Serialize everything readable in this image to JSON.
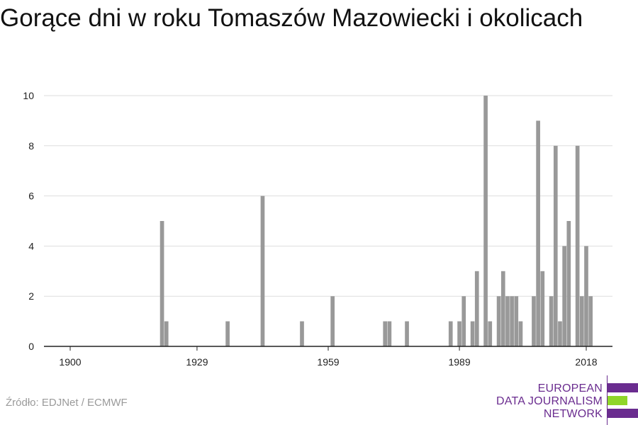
{
  "title": "Gorące dni w roku Tomaszów Mazowiecki i okolicach",
  "source": "Źródło: EDJNet / ECMWF",
  "logo": {
    "lines": [
      "EUROPEAN",
      "DATA JOURNALISM",
      "NETWORK"
    ],
    "colors": {
      "purple": "#6a2c8f",
      "green": "#8fd629"
    }
  },
  "chart_data": {
    "type": "bar",
    "title": "Gorące dni w roku Tomaszów Mazowiecki i okolicach",
    "xlabel": "",
    "ylabel": "",
    "x_ticks": [
      1900,
      1929,
      1959,
      1989,
      2018
    ],
    "y_ticks": [
      0,
      2,
      4,
      6,
      8,
      10
    ],
    "xlim": [
      1894,
      2024
    ],
    "ylim": [
      0,
      10
    ],
    "grid": "horizontal",
    "bar_color": "#999999",
    "points": [
      {
        "year": 1921,
        "value": 5
      },
      {
        "year": 1922,
        "value": 1
      },
      {
        "year": 1936,
        "value": 1
      },
      {
        "year": 1944,
        "value": 6
      },
      {
        "year": 1953,
        "value": 1
      },
      {
        "year": 1960,
        "value": 2
      },
      {
        "year": 1972,
        "value": 1
      },
      {
        "year": 1973,
        "value": 1
      },
      {
        "year": 1977,
        "value": 1
      },
      {
        "year": 1987,
        "value": 1
      },
      {
        "year": 1989,
        "value": 1
      },
      {
        "year": 1990,
        "value": 2
      },
      {
        "year": 1992,
        "value": 1
      },
      {
        "year": 1993,
        "value": 3
      },
      {
        "year": 1995,
        "value": 10
      },
      {
        "year": 1996,
        "value": 1
      },
      {
        "year": 1998,
        "value": 2
      },
      {
        "year": 1999,
        "value": 3
      },
      {
        "year": 2000,
        "value": 2
      },
      {
        "year": 2001,
        "value": 2
      },
      {
        "year": 2002,
        "value": 2
      },
      {
        "year": 2003,
        "value": 1
      },
      {
        "year": 2006,
        "value": 2
      },
      {
        "year": 2007,
        "value": 9
      },
      {
        "year": 2008,
        "value": 3
      },
      {
        "year": 2010,
        "value": 2
      },
      {
        "year": 2011,
        "value": 8
      },
      {
        "year": 2012,
        "value": 1
      },
      {
        "year": 2013,
        "value": 4
      },
      {
        "year": 2014,
        "value": 5
      },
      {
        "year": 2016,
        "value": 8
      },
      {
        "year": 2017,
        "value": 2
      },
      {
        "year": 2018,
        "value": 4
      },
      {
        "year": 2019,
        "value": 2
      }
    ]
  }
}
